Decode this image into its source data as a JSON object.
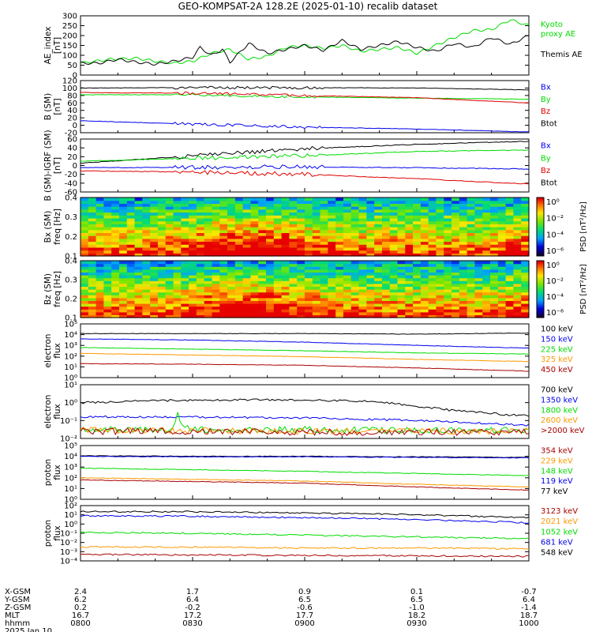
{
  "title": "GEO-KOMPSAT-2A 128.2E (2025-01-10) recalib dataset",
  "time_axis": {
    "hhmm": [
      "0800",
      "0830",
      "0900",
      "0930",
      "1000"
    ],
    "date_label": "2025 Jan 10",
    "rows": [
      {
        "label": "X-GSM",
        "values": [
          "2.4",
          "1.7",
          "0.9",
          "0.1",
          "-0.7"
        ]
      },
      {
        "label": "Y-GSM",
        "values": [
          "6.2",
          "6.4",
          "6.5",
          "6.5",
          "6.4"
        ]
      },
      {
        "label": "Z-GSM",
        "values": [
          "0.2",
          "-0.2",
          "-0.6",
          "-1.0",
          "-1.4"
        ]
      },
      {
        "label": "MLT",
        "values": [
          "16.7",
          "17.2",
          "17.7",
          "18.2",
          "18.7"
        ]
      },
      {
        "label": "hhmm",
        "values": [
          "0800",
          "0830",
          "0900",
          "0930",
          "1000"
        ]
      }
    ]
  },
  "colors": {
    "black": "#000000",
    "red": "#e00000",
    "green": "#00dd00",
    "blue": "#0000ee",
    "orange": "#ff9900",
    "darkred": "#aa0000"
  },
  "chart_data": [
    {
      "id": "ae",
      "type": "line",
      "ylabel": [
        "AE_index",
        "[nT]"
      ],
      "ylim": [
        0,
        300
      ],
      "yticks": [
        "0",
        "50",
        "100",
        "150",
        "200",
        "250",
        "300"
      ],
      "legend": [
        "Kyoto",
        "proxy AE",
        "Themis AE"
      ],
      "series": [
        {
          "name": "Kyoto proxy AE",
          "color": "#00dd00",
          "x": [
            0,
            8,
            15,
            20,
            25,
            30,
            35,
            40,
            45,
            50,
            55,
            60,
            65,
            70,
            75,
            80,
            85,
            90,
            95,
            100,
            105,
            110,
            115,
            120
          ],
          "y": [
            60,
            80,
            85,
            70,
            60,
            70,
            110,
            130,
            80,
            95,
            140,
            150,
            135,
            150,
            120,
            130,
            140,
            110,
            150,
            190,
            225,
            230,
            280,
            250
          ]
        },
        {
          "name": "Themis AE",
          "color": "#000000",
          "x": [
            0,
            5,
            10,
            15,
            20,
            25,
            30,
            32,
            35,
            38,
            40,
            45,
            50,
            55,
            60,
            65,
            70,
            75,
            80,
            85,
            90,
            95,
            100,
            105,
            110,
            115,
            120
          ],
          "y": [
            60,
            60,
            80,
            65,
            55,
            70,
            90,
            140,
            100,
            130,
            65,
            160,
            110,
            130,
            150,
            125,
            175,
            130,
            150,
            170,
            140,
            120,
            160,
            140,
            190,
            155,
            200
          ]
        }
      ]
    },
    {
      "id": "bsm",
      "type": "line",
      "ylabel": [
        "B (SM)",
        "[nT]"
      ],
      "ylim": [
        -20,
        120
      ],
      "yticks": [
        "-20",
        "0",
        "20",
        "40",
        "60",
        "80",
        "100",
        "120"
      ],
      "legend": [
        "Bx",
        "By",
        "Bz",
        "Btot"
      ],
      "series": [
        {
          "name": "Btot",
          "color": "#000000",
          "x": [
            0,
            30,
            60,
            90,
            120
          ],
          "y": [
            100,
            101,
            101,
            100,
            95
          ]
        },
        {
          "name": "By",
          "color": "#00dd00",
          "x": [
            0,
            30,
            60,
            90,
            120
          ],
          "y": [
            82,
            82,
            76,
            73,
            70
          ]
        },
        {
          "name": "Bz",
          "color": "#e00000",
          "x": [
            0,
            30,
            60,
            90,
            120
          ],
          "y": [
            88,
            86,
            80,
            74,
            60
          ]
        },
        {
          "name": "Bx",
          "color": "#0000ee",
          "x": [
            0,
            30,
            60,
            90,
            120
          ],
          "y": [
            12,
            3,
            -5,
            -10,
            -18
          ]
        }
      ]
    },
    {
      "id": "bigrf",
      "type": "line",
      "ylabel": [
        "B (SM)-IGRF (SM)",
        "[nT]"
      ],
      "ylim": [
        -60,
        60
      ],
      "yticks": [
        "-60",
        "-40",
        "-20",
        "0",
        "20",
        "40",
        "60"
      ],
      "legend": [
        "Bx",
        "By",
        "Bz",
        "Btot"
      ],
      "series": [
        {
          "name": "Btot",
          "color": "#000000",
          "x": [
            0,
            30,
            60,
            90,
            120
          ],
          "y": [
            5,
            22,
            38,
            48,
            55
          ]
        },
        {
          "name": "By",
          "color": "#00dd00",
          "x": [
            0,
            30,
            60,
            90,
            120
          ],
          "y": [
            10,
            16,
            22,
            32,
            35
          ]
        },
        {
          "name": "Bx",
          "color": "#0000ee",
          "x": [
            0,
            30,
            60,
            90,
            120
          ],
          "y": [
            -5,
            -4,
            -3,
            -5,
            -8
          ]
        },
        {
          "name": "Bz",
          "color": "#e00000",
          "x": [
            0,
            30,
            60,
            90,
            120
          ],
          "y": [
            -12,
            -15,
            -20,
            -30,
            -42
          ]
        }
      ]
    },
    {
      "id": "bxspec",
      "type": "heatmap",
      "ylabel": [
        "Bx (SM)",
        "freq [Hz]"
      ],
      "ylim": [
        0.05,
        0.5
      ],
      "yticks": [
        "0.1",
        "0.2",
        "0.3",
        "0.4"
      ],
      "colorbar": {
        "label": "PSD [nT²/Hz]",
        "ticks": [
          "10⁰",
          "10⁻²",
          "10⁻⁴",
          "10⁻⁶"
        ],
        "range": [
          -6,
          1
        ]
      }
    },
    {
      "id": "bzspec",
      "type": "heatmap",
      "ylabel": [
        "Bz (SM)",
        "freq [Hz]"
      ],
      "ylim": [
        0.05,
        0.5
      ],
      "yticks": [
        "0.1",
        "0.2",
        "0.3",
        "0.4"
      ],
      "colorbar": {
        "label": "PSD [nT²/Hz]",
        "ticks": [
          "10⁰",
          "10⁻²",
          "10⁻⁴",
          "10⁻⁶"
        ],
        "range": [
          -6,
          1
        ]
      }
    },
    {
      "id": "elow",
      "type": "line",
      "log": true,
      "ylabel": [
        "electron",
        "flux"
      ],
      "ylim_exp": [
        0,
        5
      ],
      "yticks": [
        "10⁰",
        "10¹",
        "10²",
        "10³",
        "10⁴",
        "10⁵"
      ],
      "legend": [
        "100 keV",
        "150 keV",
        "225 keV",
        "325 keV",
        "450 keV"
      ],
      "series": [
        {
          "name": "100 keV",
          "color": "#000000",
          "x": [
            0,
            30,
            60,
            90,
            120
          ],
          "y": [
            4.1,
            4.1,
            4.1,
            4.05,
            4.15
          ]
        },
        {
          "name": "150 keV",
          "color": "#0000ee",
          "x": [
            0,
            30,
            60,
            90,
            120
          ],
          "y": [
            3.6,
            3.5,
            3.3,
            3.0,
            2.75
          ]
        },
        {
          "name": "225 keV",
          "color": "#00dd00",
          "x": [
            0,
            30,
            60,
            90,
            120
          ],
          "y": [
            2.8,
            2.65,
            2.5,
            2.3,
            2.2
          ]
        },
        {
          "name": "325 keV",
          "color": "#ff9900",
          "x": [
            0,
            30,
            60,
            90,
            120
          ],
          "y": [
            2.25,
            2.1,
            1.95,
            1.7,
            1.5
          ]
        },
        {
          "name": "450 keV",
          "color": "#aa0000",
          "x": [
            0,
            30,
            60,
            90,
            120
          ],
          "y": [
            1.3,
            1.25,
            1.15,
            0.9,
            0.6
          ]
        }
      ]
    },
    {
      "id": "ehigh",
      "type": "line",
      "log": true,
      "ylabel": [
        "electron",
        "flux"
      ],
      "ylim_exp": [
        -2,
        1
      ],
      "yticks": [
        "10⁻²",
        "10⁻¹",
        "10⁰",
        "10¹"
      ],
      "legend": [
        "700 keV",
        "1350 keV",
        "1800 keV",
        "2600 keV",
        ">2000 keV"
      ],
      "series": [
        {
          "name": "700 keV",
          "color": "#000000",
          "x": [
            0,
            30,
            60,
            80,
            90,
            100,
            120
          ],
          "y": [
            0.0,
            0.15,
            0.15,
            0.05,
            -0.2,
            -0.45,
            -0.75
          ]
        },
        {
          "name": "1350 keV",
          "color": "#0000ee",
          "x": [
            0,
            30,
            60,
            90,
            120
          ],
          "y": [
            -0.8,
            -0.8,
            -0.85,
            -1.0,
            -1.25
          ]
        },
        {
          "name": "1800 keV",
          "color": "#00dd00",
          "x": [
            0,
            24,
            26,
            28,
            30,
            60,
            90,
            120
          ],
          "y": [
            -1.5,
            -1.5,
            -0.7,
            -1.4,
            -1.5,
            -1.5,
            -1.55,
            -1.55
          ]
        },
        {
          "name": "2600 keV",
          "color": "#ff9900",
          "x": [
            0,
            30,
            60,
            90,
            120
          ],
          "y": [
            -1.55,
            -1.55,
            -1.6,
            -1.6,
            -1.6
          ]
        },
        {
          "name": ">2000 keV",
          "color": "#aa0000",
          "x": [
            0,
            30,
            60,
            90,
            120
          ],
          "y": [
            -1.6,
            -1.6,
            -1.65,
            -1.65,
            -1.65
          ]
        }
      ]
    },
    {
      "id": "plow",
      "type": "line",
      "log": true,
      "ylabel": [
        "proton",
        "flux"
      ],
      "ylim_exp": [
        0,
        5
      ],
      "yticks": [
        "10⁰",
        "10¹",
        "10²",
        "10³",
        "10⁴",
        "10⁵"
      ],
      "legend": [
        "354 keV",
        "229 keV",
        "148 keV",
        "119 keV",
        "77 keV"
      ],
      "series": [
        {
          "name": "77 keV",
          "color": "#000000",
          "x": [
            0,
            30,
            60,
            90,
            120
          ],
          "y": [
            4.05,
            4.0,
            4.0,
            3.95,
            3.9
          ]
        },
        {
          "name": "119 keV",
          "color": "#0000ee",
          "x": [
            0,
            30,
            60,
            90,
            120
          ],
          "y": [
            4.0,
            3.95,
            3.95,
            3.9,
            3.85
          ]
        },
        {
          "name": "148 keV",
          "color": "#00dd00",
          "x": [
            0,
            30,
            60,
            90,
            120
          ],
          "y": [
            2.9,
            2.75,
            2.6,
            2.4,
            2.2
          ]
        },
        {
          "name": "229 keV",
          "color": "#ff9900",
          "x": [
            0,
            30,
            60,
            90,
            120
          ],
          "y": [
            2.0,
            1.85,
            1.7,
            1.4,
            1.15
          ]
        },
        {
          "name": "354 keV",
          "color": "#aa0000",
          "x": [
            0,
            30,
            60,
            90,
            120
          ],
          "y": [
            1.8,
            1.65,
            1.5,
            1.15,
            0.85
          ]
        }
      ]
    },
    {
      "id": "phigh",
      "type": "line",
      "log": true,
      "ylabel": [
        "proton",
        "flux"
      ],
      "ylim_exp": [
        -4,
        2
      ],
      "yticks": [
        "10⁻⁴",
        "10⁻³",
        "10⁻²",
        "10⁻¹",
        "10⁰",
        "10¹",
        "10²"
      ],
      "legend": [
        "3123 keV",
        "2021 keV",
        "1052 keV",
        "681 keV",
        "548 keV"
      ],
      "series": [
        {
          "name": "548 keV",
          "color": "#000000",
          "x": [
            0,
            30,
            60,
            90,
            120
          ],
          "y": [
            1.35,
            1.35,
            1.2,
            1.0,
            0.7
          ]
        },
        {
          "name": "681 keV",
          "color": "#0000ee",
          "x": [
            0,
            30,
            60,
            90,
            120
          ],
          "y": [
            0.9,
            0.85,
            0.7,
            0.5,
            0.15
          ]
        },
        {
          "name": "1052 keV",
          "color": "#00dd00",
          "x": [
            0,
            30,
            60,
            90,
            120
          ],
          "y": [
            -0.9,
            -1.0,
            -1.2,
            -1.4,
            -1.6
          ]
        },
        {
          "name": "2021 keV",
          "color": "#ff9900",
          "x": [
            0,
            30,
            60,
            90,
            120
          ],
          "y": [
            -2.5,
            -2.5,
            -2.6,
            -2.6,
            -2.7
          ]
        },
        {
          "name": "3123 keV",
          "color": "#aa0000",
          "x": [
            0,
            30,
            60,
            90,
            120
          ],
          "y": [
            -3.3,
            -3.35,
            -3.4,
            -3.45,
            -3.5
          ]
        }
      ]
    }
  ]
}
